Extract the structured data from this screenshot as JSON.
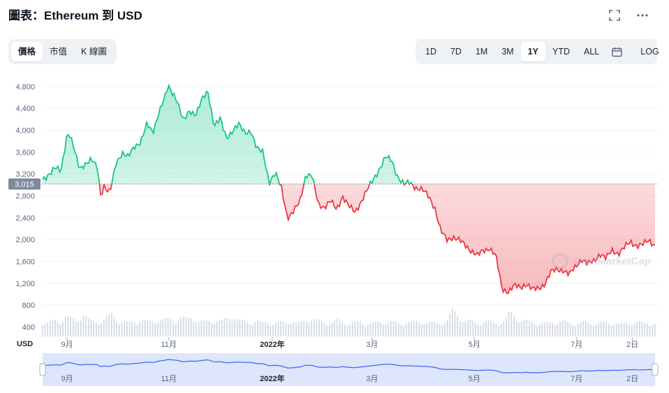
{
  "header": {
    "title": "圖表：Ethereum 到 USD",
    "fullscreen_icon": "expand-icon",
    "more_icon": "more-dots-icon"
  },
  "view_tabs": [
    {
      "label": "價格",
      "active": true
    },
    {
      "label": "市值",
      "active": false
    },
    {
      "label": "K 線圖",
      "active": false
    }
  ],
  "range_tabs": [
    {
      "label": "1D",
      "active": false
    },
    {
      "label": "7D",
      "active": false
    },
    {
      "label": "1M",
      "active": false
    },
    {
      "label": "3M",
      "active": false
    },
    {
      "label": "1Y",
      "active": true
    },
    {
      "label": "YTD",
      "active": false
    },
    {
      "label": "ALL",
      "active": false
    }
  ],
  "calendar_icon": "calendar-icon",
  "log_label": "LOG",
  "watermark": "CoinMarketCap",
  "chart_data": {
    "type": "area",
    "currency_label": "USD",
    "baseline": 3015,
    "baseline_label": "3,015",
    "up_color": "#16c784",
    "down_color": "#ea3943",
    "ylim": [
      0,
      5000
    ],
    "y_ticks": [
      400,
      800,
      1200,
      1600,
      2000,
      2400,
      2800,
      3200,
      3600,
      4000,
      4400,
      4800
    ],
    "y_tick_labels": [
      "400",
      "800",
      "1,200",
      "1,600",
      "2,000",
      "2,400",
      "2,800",
      "3,200",
      "3,600",
      "4,000",
      "4,400",
      "4,800"
    ],
    "x_ticks": [
      {
        "label": "9月",
        "t": 0.04,
        "bold": false
      },
      {
        "label": "11月",
        "t": 0.206,
        "bold": false
      },
      {
        "label": "2022年",
        "t": 0.375,
        "bold": true
      },
      {
        "label": "3月",
        "t": 0.538,
        "bold": false
      },
      {
        "label": "5月",
        "t": 0.705,
        "bold": false
      },
      {
        "label": "7月",
        "t": 0.872,
        "bold": false
      },
      {
        "label": "2日",
        "t": 0.963,
        "bold": false
      }
    ],
    "series": [
      {
        "t": [
          0,
          0.01,
          0.02,
          0.03,
          0.04,
          0.045,
          0.05,
          0.055,
          0.06,
          0.07,
          0.08,
          0.09,
          0.095,
          0.1,
          0.105,
          0.11,
          0.12,
          0.13,
          0.14,
          0.15,
          0.16,
          0.17,
          0.18,
          0.19,
          0.2,
          0.205,
          0.21,
          0.215,
          0.22,
          0.23,
          0.24,
          0.25,
          0.26,
          0.27,
          0.28,
          0.29,
          0.3,
          0.31,
          0.32,
          0.33,
          0.34,
          0.35,
          0.36,
          0.37,
          0.38,
          0.39,
          0.4,
          0.41,
          0.42,
          0.43,
          0.44,
          0.45,
          0.46,
          0.47,
          0.48,
          0.49,
          0.5,
          0.51,
          0.52,
          0.53,
          0.54,
          0.55,
          0.56,
          0.57,
          0.58,
          0.59,
          0.6,
          0.61,
          0.62,
          0.63,
          0.64,
          0.65,
          0.66,
          0.67,
          0.68,
          0.69,
          0.7,
          0.71,
          0.72,
          0.73,
          0.74,
          0.75,
          0.76,
          0.77,
          0.78,
          0.79,
          0.8,
          0.81,
          0.82,
          0.83,
          0.84,
          0.85,
          0.86,
          0.87,
          0.88,
          0.89,
          0.9,
          0.91,
          0.92,
          0.93,
          0.94,
          0.95,
          0.96,
          0.97,
          0.98,
          0.99,
          1.0
        ],
        "price": [
          3100,
          3200,
          3300,
          3250,
          3950,
          3900,
          3700,
          3500,
          3300,
          3400,
          3450,
          3300,
          2800,
          3000,
          2900,
          2850,
          3400,
          3600,
          3500,
          3700,
          3800,
          4100,
          3950,
          4350,
          4600,
          4800,
          4700,
          4650,
          4550,
          4150,
          4350,
          4300,
          4550,
          4700,
          4100,
          4200,
          3850,
          4000,
          4100,
          3950,
          4000,
          3650,
          3600,
          3050,
          3200,
          2950,
          2400,
          2500,
          2700,
          3200,
          3150,
          2650,
          2600,
          2700,
          2550,
          2800,
          2600,
          2500,
          2700,
          2900,
          3100,
          3300,
          3500,
          3450,
          3150,
          3000,
          3050,
          2950,
          2900,
          2800,
          2600,
          2150,
          2000,
          2050,
          1980,
          1900,
          1800,
          1700,
          1800,
          1850,
          1700,
          1100,
          1050,
          1150,
          1120,
          1200,
          1080,
          1100,
          1200,
          1400,
          1450,
          1450,
          1350,
          1500,
          1650,
          1550,
          1600,
          1750,
          1650,
          1800,
          1750,
          1850,
          1950,
          1900,
          1900,
          1980,
          1900
        ],
        "volume": [
          0.4,
          0.35,
          0.42,
          0.38,
          0.55,
          0.45,
          0.4,
          0.62,
          0.44,
          0.36,
          0.4,
          0.5,
          0.58,
          0.42,
          0.38,
          0.36,
          0.4,
          0.44,
          0.38,
          0.41,
          0.45,
          0.42,
          0.48,
          0.44,
          0.5,
          0.46,
          0.52,
          0.4,
          0.38,
          0.42,
          0.44,
          0.4,
          0.48,
          0.55,
          0.42,
          0.4,
          0.38,
          0.42,
          0.36,
          0.4,
          0.34,
          0.38,
          0.36,
          0.42,
          0.34,
          0.38,
          0.48,
          0.44,
          0.4,
          0.38,
          0.36,
          0.42,
          0.38,
          0.34,
          0.36,
          0.38,
          0.32,
          0.34,
          0.36,
          0.38,
          0.4,
          0.36,
          0.34,
          0.38,
          0.36,
          0.4,
          0.38,
          0.36,
          0.34,
          0.38,
          0.4,
          0.7,
          0.55,
          0.42,
          0.4,
          0.38,
          0.36,
          0.4,
          0.38,
          0.36,
          0.4,
          0.65,
          0.5,
          0.42,
          0.4,
          0.38,
          0.36,
          0.34,
          0.36,
          0.38,
          0.4,
          0.36,
          0.34,
          0.36,
          0.38,
          0.34,
          0.36,
          0.38,
          0.34,
          0.36,
          0.32,
          0.34,
          0.36,
          0.38,
          0.34,
          0.36,
          0.34
        ]
      }
    ]
  }
}
